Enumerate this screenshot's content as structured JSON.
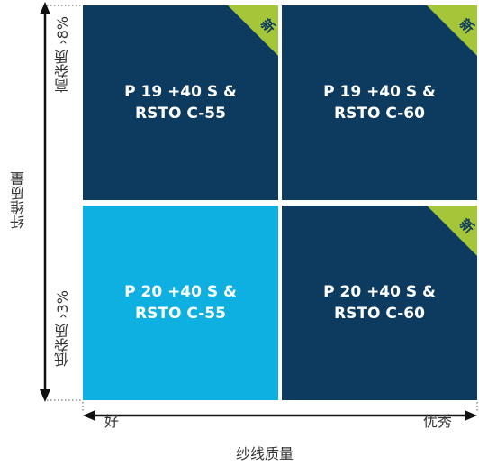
{
  "cells": {
    "top_left": {
      "line1": "P 19 +40 S &",
      "line2": "RSTO C-55",
      "badge": "新"
    },
    "top_right": {
      "line1": "P 19 +40 S &",
      "line2": "RSTO C-60",
      "badge": "新"
    },
    "bottom_left": {
      "line1": "P 20 +40 S &",
      "line2": "RSTO C-55"
    },
    "bottom_right": {
      "line1": "P 20 +40 S &",
      "line2": "RSTO C-60",
      "badge": "新"
    }
  },
  "y_axis": {
    "title": "纤维质量",
    "high_label": "高杂质 ›8%",
    "low_label": "低杂质 ›3%"
  },
  "x_axis": {
    "title": "纱线质量",
    "low_label": "好",
    "high_label": "优秀"
  },
  "colors": {
    "dark_cell": "#0d3a5f",
    "light_cell": "#0db0e0",
    "badge": "#a6c63a"
  }
}
